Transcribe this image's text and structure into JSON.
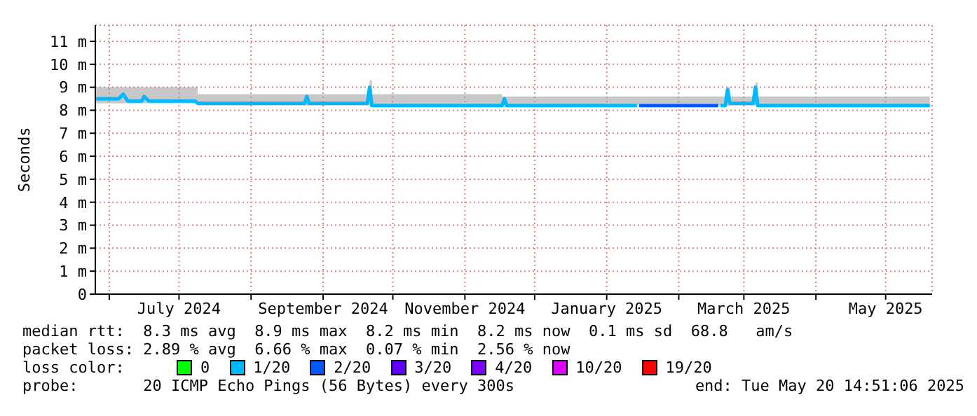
{
  "chart_data": {
    "type": "line",
    "ylabel": "Seconds",
    "legend_title": "loss color:",
    "legend": "bottom",
    "grid": true,
    "x": [
      "2024-05-26",
      "2024-06-05",
      "2024-06-07",
      "2024-06-09",
      "2024-06-15",
      "2024-06-16",
      "2024-06-18",
      "2024-07-08",
      "2024-07-09",
      "2024-08-24",
      "2024-08-25",
      "2024-08-26",
      "2024-09-20",
      "2024-09-21",
      "2024-09-22",
      "2024-11-17",
      "2024-11-18",
      "2024-11-19",
      "2025-01-14",
      "2025-01-15",
      "2025-02-18",
      "2025-02-19",
      "2025-02-21",
      "2025-02-22",
      "2025-02-23",
      "2025-03-05",
      "2025-03-06",
      "2025-03-07",
      "2025-05-20"
    ],
    "xlim": [
      "2024-05-26",
      "2025-05-21"
    ],
    "xticks": [
      {
        "value": "2024-06-01",
        "label": null
      },
      {
        "value": "2024-07-01",
        "label": "July 2024"
      },
      {
        "value": "2024-08-01",
        "label": null
      },
      {
        "value": "2024-09-01",
        "label": "September 2024"
      },
      {
        "value": "2024-10-01",
        "label": null
      },
      {
        "value": "2024-11-01",
        "label": "November 2024"
      },
      {
        "value": "2024-12-01",
        "label": null
      },
      {
        "value": "2025-01-01",
        "label": "January 2025"
      },
      {
        "value": "2025-02-01",
        "label": null
      },
      {
        "value": "2025-03-01",
        "label": "March 2025"
      },
      {
        "value": "2025-04-01",
        "label": null
      },
      {
        "value": "2025-05-01",
        "label": "May 2025"
      }
    ],
    "ylim": [
      0,
      11.7
    ],
    "yticks": [
      0,
      {
        "value": 1,
        "label": "1 m"
      },
      {
        "value": 2,
        "label": "2 m"
      },
      {
        "value": 3,
        "label": "3 m"
      },
      {
        "value": 4,
        "label": "4 m"
      },
      {
        "value": 5,
        "label": "5 m"
      },
      {
        "value": 6,
        "label": "6 m"
      },
      {
        "value": 7,
        "label": "7 m"
      },
      {
        "value": 8,
        "label": "8 m"
      },
      {
        "value": 9,
        "label": "9 m"
      },
      {
        "value": 10,
        "label": "10 m"
      },
      {
        "value": 11,
        "label": "11 m"
      }
    ],
    "series": [
      {
        "name": "0",
        "color": "#00ff00",
        "values": [
          null,
          null,
          null,
          null,
          null,
          null,
          null,
          null,
          null,
          null,
          null,
          null,
          null,
          null,
          null,
          null,
          null,
          null,
          null,
          null,
          null,
          null,
          null,
          null,
          null,
          null,
          null,
          null,
          null
        ]
      },
      {
        "name": "1/20",
        "color": "#00b8ff",
        "values": [
          8.5,
          8.5,
          8.7,
          8.4,
          8.4,
          8.6,
          8.4,
          8.4,
          8.3,
          8.3,
          8.6,
          8.3,
          8.3,
          9.0,
          8.2,
          8.2,
          8.5,
          8.2,
          8.2,
          null,
          null,
          8.2,
          8.2,
          8.9,
          8.3,
          8.3,
          9.0,
          8.2,
          8.2
        ],
        "lower": [
          8.3,
          8.3,
          8.3,
          8.3,
          8.3,
          8.3,
          8.3,
          8.3,
          8.2,
          8.2,
          8.2,
          8.2,
          8.2,
          8.2,
          8.2,
          8.2,
          8.2,
          8.2,
          8.2,
          8.2,
          8.2,
          8.2,
          8.2,
          8.2,
          8.2,
          8.2,
          8.2,
          8.2,
          8.2
        ],
        "upper": [
          9.0,
          9.0,
          9.0,
          9.0,
          9.0,
          9.0,
          9.0,
          9.0,
          8.7,
          8.7,
          8.7,
          8.7,
          8.7,
          9.3,
          8.7,
          8.6,
          8.6,
          8.6,
          8.6,
          8.6,
          8.6,
          8.6,
          8.6,
          9.0,
          8.6,
          8.6,
          9.2,
          8.6,
          8.5
        ]
      },
      {
        "name": "2/20",
        "color": "#0059ff",
        "values": [
          null,
          null,
          null,
          null,
          null,
          null,
          null,
          null,
          null,
          null,
          null,
          null,
          null,
          null,
          null,
          null,
          null,
          null,
          null,
          8.2,
          8.2,
          null,
          null,
          null,
          null,
          null,
          null,
          null,
          null
        ]
      },
      {
        "name": "3/20",
        "color": "#5e00ff",
        "values": [
          null,
          null,
          null,
          null,
          null,
          null,
          null,
          null,
          null,
          null,
          null,
          null,
          null,
          null,
          null,
          null,
          null,
          null,
          null,
          null,
          null,
          null,
          null,
          null,
          null,
          null,
          null,
          null,
          null
        ]
      },
      {
        "name": "4/20",
        "color": "#7e00ff",
        "values": [
          null,
          null,
          null,
          null,
          null,
          null,
          null,
          null,
          null,
          null,
          null,
          null,
          null,
          null,
          null,
          null,
          null,
          null,
          null,
          null,
          null,
          null,
          null,
          null,
          null,
          null,
          null,
          null,
          null
        ]
      },
      {
        "name": "10/20",
        "color": "#dd00ff",
        "values": [
          null,
          null,
          null,
          null,
          null,
          null,
          null,
          null,
          null,
          null,
          null,
          null,
          null,
          null,
          null,
          null,
          null,
          null,
          null,
          null,
          null,
          null,
          null,
          null,
          null,
          null,
          null,
          null,
          null
        ]
      },
      {
        "name": "19/20",
        "color": "#ff0000",
        "values": [
          null,
          null,
          null,
          null,
          null,
          null,
          null,
          null,
          null,
          null,
          null,
          null,
          null,
          null,
          null,
          null,
          null,
          null,
          null,
          null,
          null,
          null,
          null,
          null,
          null,
          null,
          null,
          null,
          null
        ]
      }
    ],
    "annotations": [
      "median rtt:  8.3 ms avg  8.9 ms max  8.2 ms min  8.2 ms now  0.1 ms sd  68.8   am/s",
      "packet loss: 2.89 % avg  6.66 % max  0.07 % min  2.56 % now",
      "probe:       20 ICMP Echo Pings (56 Bytes) every 300s",
      "end: Tue May 20 14:51:06 2025"
    ]
  }
}
